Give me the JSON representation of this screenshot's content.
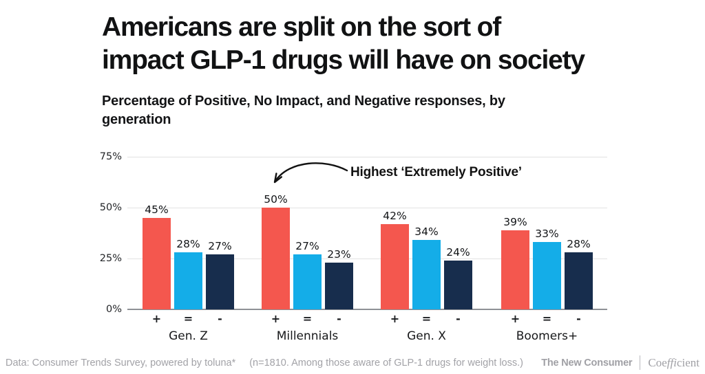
{
  "header": {
    "title_line1": "Americans are split on the sort of",
    "title_line2": "impact GLP-1 drugs will have on society",
    "subtitle_line1": "Percentage of Positive, No Impact, and Negative responses, by",
    "subtitle_line2": "generation"
  },
  "annotation": {
    "text": "Highest ‘Extremely Positive’"
  },
  "chart_data": {
    "type": "bar",
    "title": "Americans are split on the sort of impact GLP-1 drugs will have on society",
    "subtitle": "Percentage of Positive, No Impact, and Negative responses, by generation",
    "categories": [
      "Gen. Z",
      "Millennials",
      "Gen. X",
      "Boomers+"
    ],
    "series": [
      {
        "name": "Positive",
        "symbol": "+",
        "color": "#F4574E",
        "values": [
          45,
          50,
          42,
          39
        ]
      },
      {
        "name": "No Impact",
        "symbol": "=",
        "color": "#14ADE8",
        "values": [
          28,
          27,
          34,
          33
        ]
      },
      {
        "name": "Negative",
        "symbol": "-",
        "color": "#172D4D",
        "values": [
          27,
          23,
          24,
          28
        ]
      }
    ],
    "value_suffix": "%",
    "yticks": [
      "0%",
      "25%",
      "50%",
      "75%"
    ],
    "ylim": [
      0,
      75
    ],
    "grid": "horizontal",
    "legend": "none",
    "annotation": {
      "text": "Highest ‘Extremely Positive’",
      "target": "Millennials Positive bar (50%)"
    }
  },
  "footer": {
    "source_prefix": "Data: Consumer Trends Survey, powered by",
    "source_logo": "toluna*",
    "note": "(n=1810. Among those aware of GLP-1 drugs for weight loss.)",
    "brand_left": "The New Consumer",
    "brand_right_pre": "Coe",
    "brand_right_lig": "ffi",
    "brand_right_post": "cient"
  }
}
